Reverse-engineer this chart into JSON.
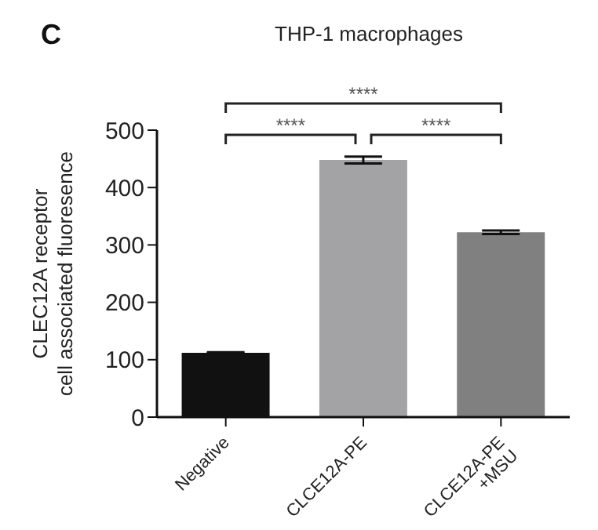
{
  "chart_data": {
    "type": "bar",
    "title": "THP-1 macrophages",
    "ylabel": "CLEC12A receptor\ncell associated fluoresence",
    "categories": [
      "Negative",
      "CLCE12A-PE",
      "CLCE12A-PE\n+MSU"
    ],
    "values": [
      112,
      448,
      322
    ],
    "colors": [
      "#111111",
      "#a3a3a6",
      "#808080"
    ],
    "errors": [
      1,
      6,
      3
    ],
    "ylim": [
      0,
      500
    ],
    "yticks": [
      0,
      100,
      200,
      300,
      400,
      500
    ],
    "annotations": [
      "C",
      "****",
      "****",
      "****"
    ]
  }
}
